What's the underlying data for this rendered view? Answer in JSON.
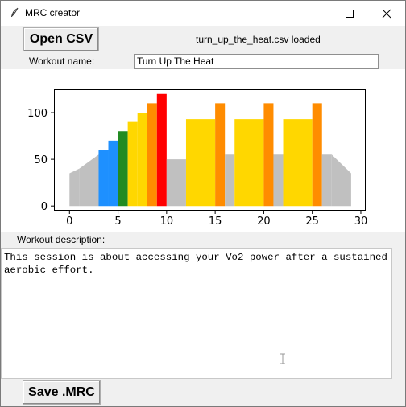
{
  "window": {
    "title": "MRC creator",
    "icon": "feather-icon"
  },
  "toolbar": {
    "open_csv_label": "Open CSV",
    "status_text": "turn_up_the_heat.csv loaded",
    "save_mrc_label": "Save .MRC"
  },
  "workout": {
    "name_label": "Workout name:",
    "name_value": "Turn Up The Heat",
    "description_label": "Workout description:",
    "description_value": "This session is about accessing your Vo2 power after a sustained aerobic effort."
  },
  "chart_data": {
    "type": "bar",
    "xlim": [
      -1.6,
      30.5
    ],
    "ylim": [
      -5,
      125
    ],
    "xticks": [
      0,
      5,
      10,
      15,
      20,
      25,
      30
    ],
    "yticks": [
      0,
      50,
      100
    ],
    "grid": false,
    "legend": "none",
    "segments": [
      {
        "x0": 0.0,
        "x1": 1.0,
        "y0": 35,
        "y1": 40,
        "color": "#c0c0c0",
        "kind": "ramp"
      },
      {
        "x0": 1.0,
        "x1": 3.0,
        "y0": 40,
        "y1": 55,
        "color": "#c0c0c0",
        "kind": "ramp"
      },
      {
        "x0": 3.0,
        "x1": 4.0,
        "y0": 60,
        "y1": 60,
        "color": "#1e90ff",
        "kind": "flat"
      },
      {
        "x0": 4.0,
        "x1": 5.0,
        "y0": 70,
        "y1": 70,
        "color": "#1e90ff",
        "kind": "flat"
      },
      {
        "x0": 5.0,
        "x1": 6.0,
        "y0": 80,
        "y1": 80,
        "color": "#228b22",
        "kind": "flat"
      },
      {
        "x0": 6.0,
        "x1": 7.0,
        "y0": 90,
        "y1": 90,
        "color": "#ffd700",
        "kind": "flat"
      },
      {
        "x0": 7.0,
        "x1": 8.0,
        "y0": 100,
        "y1": 100,
        "color": "#ffd700",
        "kind": "flat"
      },
      {
        "x0": 8.0,
        "x1": 9.0,
        "y0": 110,
        "y1": 110,
        "color": "#ff8c00",
        "kind": "flat"
      },
      {
        "x0": 9.0,
        "x1": 10.0,
        "y0": 120,
        "y1": 120,
        "color": "#ff0000",
        "kind": "flat"
      },
      {
        "x0": 10.0,
        "x1": 12.0,
        "y0": 50,
        "y1": 50,
        "color": "#c0c0c0",
        "kind": "flat"
      },
      {
        "x0": 12.0,
        "x1": 15.0,
        "y0": 93,
        "y1": 93,
        "color": "#ffd700",
        "kind": "flat"
      },
      {
        "x0": 15.0,
        "x1": 16.0,
        "y0": 110,
        "y1": 110,
        "color": "#ff8c00",
        "kind": "flat"
      },
      {
        "x0": 16.0,
        "x1": 17.0,
        "y0": 55,
        "y1": 55,
        "color": "#c0c0c0",
        "kind": "flat"
      },
      {
        "x0": 17.0,
        "x1": 20.0,
        "y0": 93,
        "y1": 93,
        "color": "#ffd700",
        "kind": "flat"
      },
      {
        "x0": 20.0,
        "x1": 21.0,
        "y0": 110,
        "y1": 110,
        "color": "#ff8c00",
        "kind": "flat"
      },
      {
        "x0": 21.0,
        "x1": 22.0,
        "y0": 55,
        "y1": 55,
        "color": "#c0c0c0",
        "kind": "flat"
      },
      {
        "x0": 22.0,
        "x1": 25.0,
        "y0": 93,
        "y1": 93,
        "color": "#ffd700",
        "kind": "flat"
      },
      {
        "x0": 25.0,
        "x1": 26.0,
        "y0": 110,
        "y1": 110,
        "color": "#ff8c00",
        "kind": "flat"
      },
      {
        "x0": 26.0,
        "x1": 27.0,
        "y0": 55,
        "y1": 55,
        "color": "#c0c0c0",
        "kind": "flat"
      },
      {
        "x0": 27.0,
        "x1": 29.0,
        "y0": 55,
        "y1": 35,
        "color": "#c0c0c0",
        "kind": "ramp"
      }
    ]
  }
}
